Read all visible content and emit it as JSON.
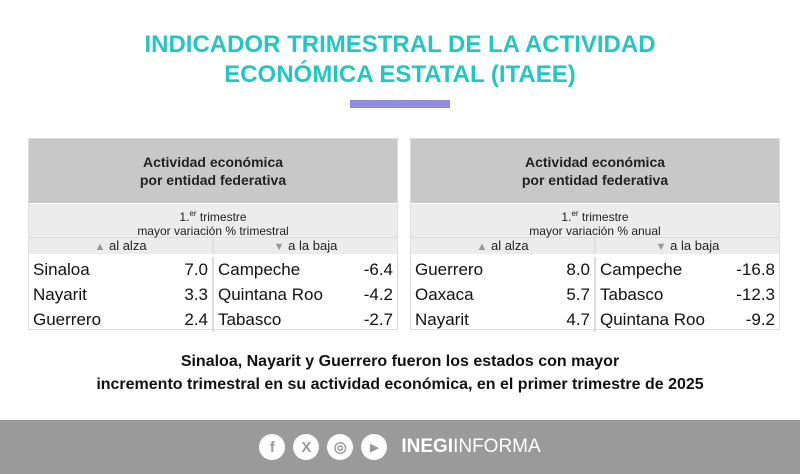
{
  "title": {
    "line1": "INDICADOR TRIMESTRAL DE LA ACTIVIDAD",
    "line2": "ECONÓMICA ESTATAL (ITAEE)"
  },
  "colors": {
    "title": "#22c7c4",
    "accent_bar": "#8d8de0",
    "footer": "#9a9a9a"
  },
  "tables": [
    {
      "header1": "Actividad económica",
      "header2": "por entidad federativa",
      "period": "1.",
      "period_sup": "er",
      "period_rest": " trimestre",
      "measure": "mayor variación % trimestral",
      "up_icon": "▲",
      "up_label": "al alza",
      "down_icon": "▼",
      "down_label": "a la baja",
      "up": [
        {
          "state": "Sinaloa",
          "value": "7.0"
        },
        {
          "state": "Nayarit",
          "value": "3.3"
        },
        {
          "state": "Guerrero",
          "value": "2.4"
        }
      ],
      "down": [
        {
          "state": "Campeche",
          "value": "-6.4"
        },
        {
          "state": "Quintana Roo",
          "value": "-4.2"
        },
        {
          "state": "Tabasco",
          "value": "-2.7"
        }
      ]
    },
    {
      "header1": "Actividad económica",
      "header2": "por entidad federativa",
      "period": "1.",
      "period_sup": "er",
      "period_rest": " trimestre",
      "measure": "mayor variación % anual",
      "up_icon": "▲",
      "up_label": "al alza",
      "down_icon": "▼",
      "down_label": "a la baja",
      "up": [
        {
          "state": "Guerrero",
          "value": "8.0"
        },
        {
          "state": "Oaxaca",
          "value": "5.7"
        },
        {
          "state": "Nayarit",
          "value": "4.7"
        }
      ],
      "down": [
        {
          "state": "Campeche",
          "value": "-16.8"
        },
        {
          "state": "Tabasco",
          "value": "-12.3"
        },
        {
          "state": "Quintana Roo",
          "value": "-9.2"
        }
      ]
    }
  ],
  "note": {
    "line1": "Sinaloa, Nayarit y Guerrero fueron los estados con mayor",
    "line2": "incremento trimestral en su actividad económica, en el primer trimestre de 2025"
  },
  "footer": {
    "icons": [
      "facebook-icon",
      "x-icon",
      "instagram-icon",
      "youtube-icon"
    ],
    "glyphs": [
      "f",
      "X",
      "◎",
      "▶"
    ],
    "brand_bold": "INEGI",
    "brand_light": "INFORMA"
  }
}
